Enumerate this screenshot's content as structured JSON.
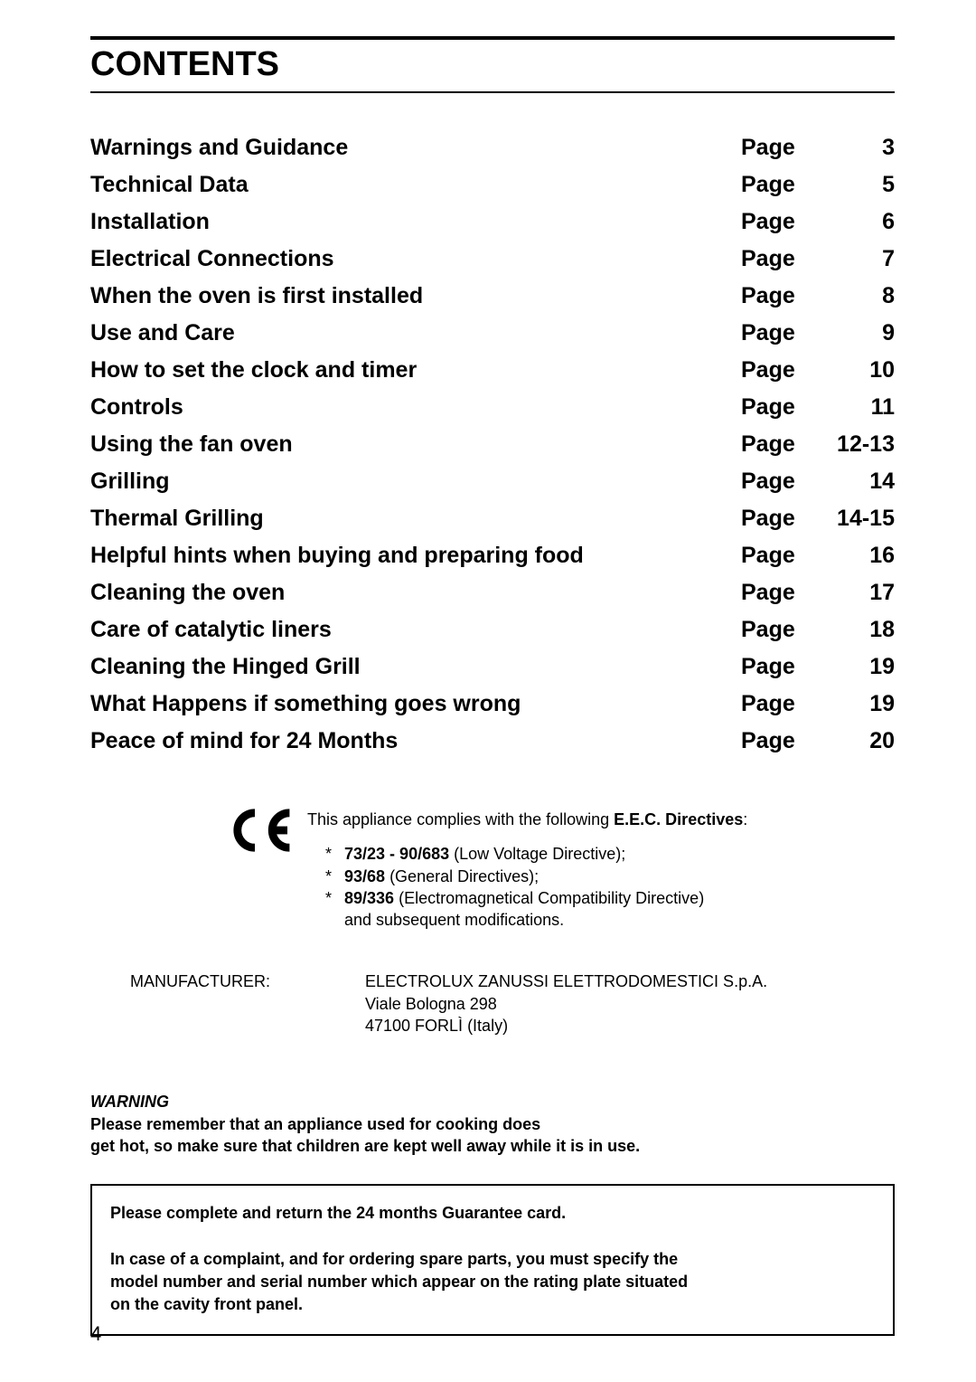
{
  "page": {
    "title": "CONTENTS",
    "page_label": "Page",
    "page_number": "4"
  },
  "toc": [
    {
      "title": "Warnings and Guidance",
      "page": "3"
    },
    {
      "title": "Technical Data",
      "page": "5"
    },
    {
      "title": "Installation",
      "page": "6"
    },
    {
      "title": "Electrical Connections",
      "page": "7"
    },
    {
      "title": "When the oven is first installed",
      "page": "8"
    },
    {
      "title": "Use and Care",
      "page": "9"
    },
    {
      "title": "How to set the clock and timer",
      "page": "10"
    },
    {
      "title": "Controls",
      "page": "11"
    },
    {
      "title": "Using the fan oven",
      "page": "12-13"
    },
    {
      "title": "Grilling",
      "page": "14"
    },
    {
      "title": "Thermal Grilling",
      "page": "14-15"
    },
    {
      "title": "Helpful hints when buying and preparing food",
      "page": "16"
    },
    {
      "title": "Cleaning the oven",
      "page": "17"
    },
    {
      "title": "Care of catalytic liners",
      "page": "18"
    },
    {
      "title": "Cleaning the Hinged Grill",
      "page": "19"
    },
    {
      "title": "What Happens if something goes wrong",
      "page": "19"
    },
    {
      "title": "Peace of mind for 24 Months",
      "page": "20"
    }
  ],
  "compliance": {
    "intro_prefix": "This appliance complies with the following ",
    "intro_bold": "E.E.C. Directives",
    "intro_suffix": ":",
    "items": [
      {
        "code": "73/23 - 90/683",
        "desc": " (Low Voltage Directive);"
      },
      {
        "code": "93/68",
        "desc": " (General Directives);"
      },
      {
        "code": "89/336",
        "desc": " (Electromagnetical Compatibility Directive)"
      }
    ],
    "trailer": "and subsequent modifications."
  },
  "manufacturer": {
    "label": "MANUFACTURER:",
    "line1": "ELECTROLUX ZANUSSI ELETTRODOMESTICI S.p.A.",
    "line2": "Viale Bologna 298",
    "line3": "47100 FORLÌ (Italy)"
  },
  "warning": {
    "heading": "WARNING",
    "line1": "Please remember that an appliance used for cooking does",
    "line2": "get hot, so make sure that children are kept well away while it is in use."
  },
  "box": {
    "line1": "Please complete and return the 24 months Guarantee card.",
    "line2": "In case of a complaint, and for ordering spare parts, you must specify the",
    "line3": "model number and serial number which appear on the rating plate situated",
    "line4": "on the cavity front panel."
  }
}
